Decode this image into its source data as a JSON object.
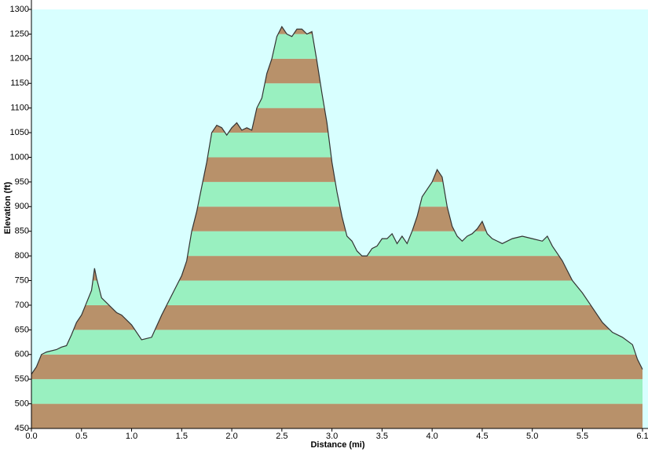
{
  "chart_data": {
    "type": "area",
    "x_label": "Distance  (mi)",
    "y_label": "Elevation (ft)",
    "x": [
      0.0,
      0.05,
      0.1,
      0.15,
      0.25,
      0.3,
      0.35,
      0.4,
      0.45,
      0.5,
      0.55,
      0.6,
      0.63,
      0.65,
      0.7,
      0.8,
      0.85,
      0.9,
      1.0,
      1.1,
      1.2,
      1.3,
      1.4,
      1.5,
      1.55,
      1.6,
      1.65,
      1.7,
      1.75,
      1.8,
      1.85,
      1.9,
      1.95,
      2.0,
      2.05,
      2.1,
      2.15,
      2.2,
      2.25,
      2.3,
      2.35,
      2.4,
      2.45,
      2.5,
      2.55,
      2.6,
      2.65,
      2.7,
      2.75,
      2.8,
      2.85,
      2.9,
      2.95,
      3.0,
      3.05,
      3.1,
      3.15,
      3.2,
      3.25,
      3.3,
      3.35,
      3.4,
      3.45,
      3.5,
      3.55,
      3.6,
      3.65,
      3.7,
      3.75,
      3.8,
      3.85,
      3.9,
      3.95,
      4.0,
      4.05,
      4.1,
      4.15,
      4.2,
      4.25,
      4.3,
      4.35,
      4.4,
      4.45,
      4.5,
      4.55,
      4.6,
      4.65,
      4.7,
      4.8,
      4.9,
      5.0,
      5.1,
      5.15,
      5.2,
      5.3,
      5.35,
      5.4,
      5.5,
      5.6,
      5.7,
      5.8,
      5.9,
      6.0,
      6.05,
      6.1
    ],
    "values": [
      560,
      575,
      600,
      605,
      610,
      615,
      618,
      640,
      665,
      680,
      705,
      730,
      775,
      755,
      715,
      695,
      685,
      680,
      660,
      630,
      635,
      680,
      720,
      760,
      790,
      850,
      890,
      940,
      990,
      1050,
      1065,
      1060,
      1045,
      1060,
      1070,
      1055,
      1060,
      1055,
      1100,
      1120,
      1170,
      1200,
      1245,
      1265,
      1250,
      1245,
      1260,
      1260,
      1250,
      1255,
      1195,
      1130,
      1070,
      990,
      930,
      880,
      840,
      830,
      810,
      800,
      800,
      815,
      820,
      835,
      835,
      845,
      825,
      840,
      825,
      850,
      880,
      920,
      935,
      950,
      975,
      960,
      900,
      860,
      840,
      830,
      840,
      845,
      855,
      870,
      845,
      835,
      830,
      825,
      835,
      840,
      835,
      830,
      840,
      820,
      790,
      770,
      750,
      725,
      695,
      665,
      645,
      635,
      620,
      590,
      570
    ],
    "xlim": [
      0,
      6.1
    ],
    "ylim": [
      450,
      1300
    ],
    "xticks": [
      {
        "value": 0,
        "label": "0.0"
      },
      0.5,
      {
        "value": 1,
        "label": "1.0"
      },
      1.5,
      {
        "value": 2,
        "label": "2.0"
      },
      2.5,
      {
        "value": 3,
        "label": "3.0"
      },
      3.5,
      {
        "value": 4,
        "label": "4.0"
      },
      4.5,
      {
        "value": 5,
        "label": "5.0"
      },
      5.5,
      6.1
    ],
    "yticks": [
      450,
      500,
      550,
      600,
      650,
      700,
      750,
      800,
      850,
      900,
      950,
      1000,
      1050,
      1100,
      1150,
      1200,
      1250,
      1300
    ],
    "band_colors": [
      "#b8916a",
      "#99f0c0"
    ],
    "line_color": "#333333",
    "background": "#d8ffff"
  }
}
